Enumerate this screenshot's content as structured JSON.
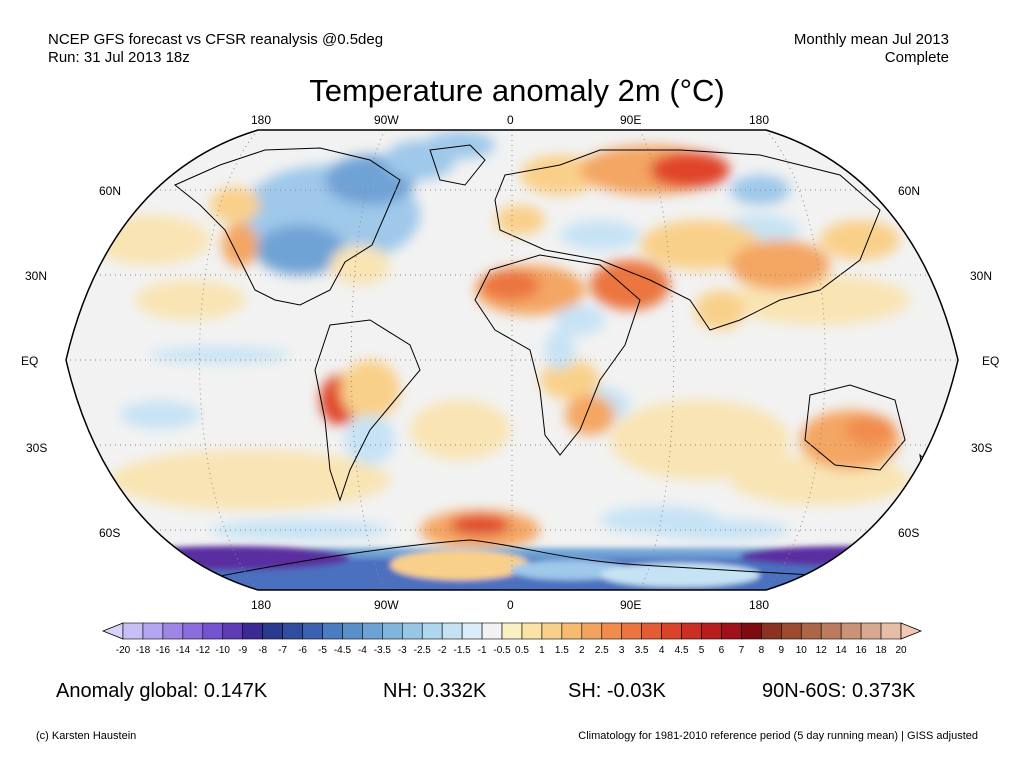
{
  "header": {
    "line1_left": "NCEP GFS forecast vs CFSR reanalysis @0.5deg",
    "line2_left": "Run: 31 Jul 2013 18z",
    "line1_right": "Monthly mean Jul 2013",
    "line2_right": "Complete"
  },
  "title": "Temperature anomaly 2m (°C)",
  "map": {
    "projection": "Robinson",
    "longitude_labels": [
      "180",
      "90W",
      "0",
      "90E",
      "180"
    ],
    "latitude_labels_left": [
      "60N",
      "30N",
      "EQ",
      "30S",
      "60S"
    ],
    "latitude_labels_right": [
      "60N",
      "30N",
      "EQ",
      "30S",
      "60S"
    ],
    "colors": {
      "ocean_neutral": "#f2f2f2",
      "warm_light": "#f9e4b4",
      "warm_mid": "#f4a663",
      "warm_strong": "#e0442c",
      "cool_light": "#c6e3f5",
      "cool_mid": "#6fa3d5",
      "cool_strong": "#3a3aa0",
      "cold_extreme": "#5a2ea0"
    }
  },
  "colorbar": {
    "labels": [
      "-20",
      "-18",
      "-16",
      "-14",
      "-12",
      "-10",
      "-9",
      "-8",
      "-7",
      "-6",
      "-5",
      "-4.5",
      "-4",
      "-3.5",
      "-3",
      "-2.5",
      "-2",
      "-1.5",
      "-1",
      "-0.5",
      "0.5",
      "1",
      "1.5",
      "2",
      "2.5",
      "3",
      "3.5",
      "4",
      "4.5",
      "5",
      "6",
      "7",
      "8",
      "9",
      "10",
      "12",
      "14",
      "16",
      "18",
      "20"
    ],
    "colors": [
      "#c8bff6",
      "#b5a6f2",
      "#9f86e6",
      "#8c6ddc",
      "#7654cf",
      "#5f3cb4",
      "#3c2a94",
      "#2a3a8e",
      "#304d9f",
      "#3a62b0",
      "#4b7bc0",
      "#5b8fca",
      "#6ca3d4",
      "#80b6de",
      "#96c8e6",
      "#aed6ee",
      "#c4e2f4",
      "#daedf8",
      "#f2f2f2",
      "#fbf0c2",
      "#fbe3a6",
      "#f9d08a",
      "#f7ba70",
      "#f4a35e",
      "#f18c4d",
      "#ec7440",
      "#e55b34",
      "#da432a",
      "#cb2e23",
      "#b91c1c",
      "#a0101b",
      "#7e0b12",
      "#8a3320",
      "#9c4a30",
      "#ad6548",
      "#bc7b5e",
      "#cb9278",
      "#d8a890",
      "#e6bea8"
    ],
    "left_arrow_color": "#d8d4f8",
    "right_arrow_color": "#f2c8b4"
  },
  "stats": {
    "global": "Anomaly global: 0.147K",
    "nh": "NH: 0.332K",
    "sh": "SH: -0.03K",
    "polar": "90N-60S: 0.373K"
  },
  "footer": {
    "left": "(c) Karsten Haustein",
    "right": "Climatology for 1981-2010 reference period (5 day running mean) | GISS adjusted"
  }
}
